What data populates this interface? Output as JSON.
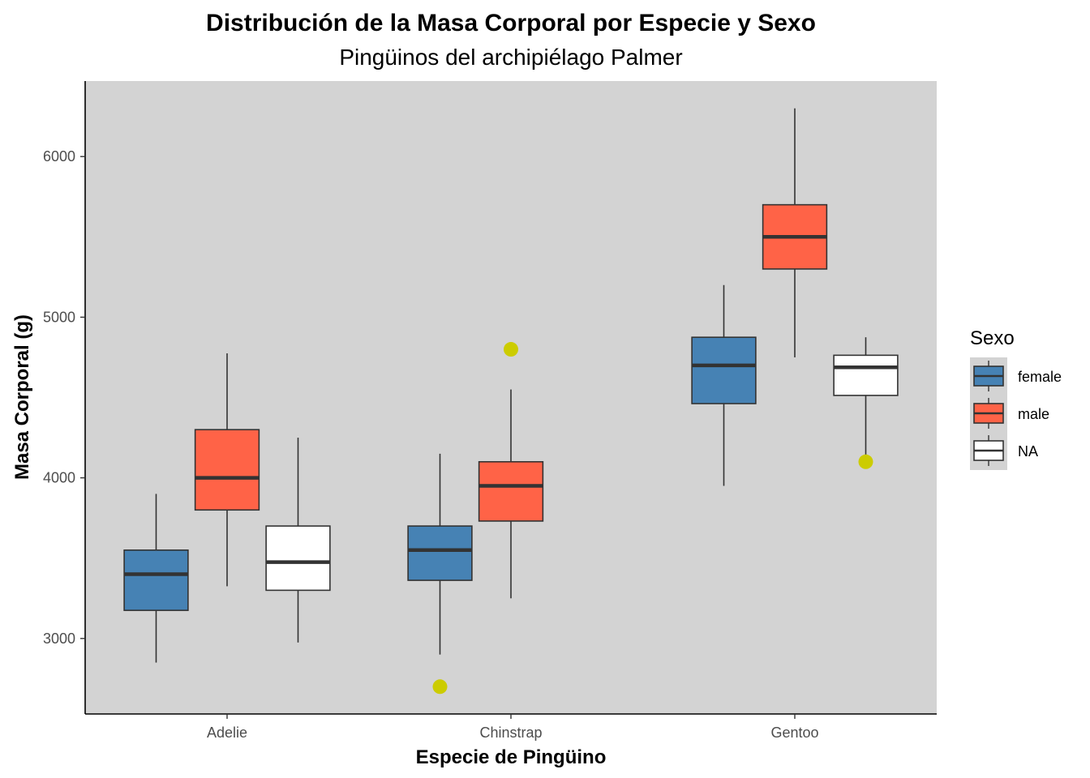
{
  "chart_data": {
    "type": "boxplot",
    "title": "Distribución de la Masa Corporal por Especie y Sexo",
    "subtitle": "Pingüinos del archipiélago Palmer",
    "xlabel": "Especie de Pingüino",
    "ylabel": "Masa Corporal (g)",
    "categories": [
      "Adelie",
      "Chinstrap",
      "Gentoo"
    ],
    "ylim": [
      2530,
      6470
    ],
    "yticks": [
      3000,
      4000,
      5000,
      6000
    ],
    "grid": false,
    "panel_background": "#d3d3d3",
    "outlier_color": "#cccc00",
    "legend": {
      "title": "Sexo",
      "position": "right"
    },
    "series": [
      {
        "name": "female",
        "color": "#4682b4",
        "boxes": [
          {
            "category": "Adelie",
            "whisker_low": 2850,
            "q1": 3175,
            "median": 3400,
            "q3": 3550,
            "whisker_high": 3900,
            "outliers": []
          },
          {
            "category": "Chinstrap",
            "whisker_low": 2900,
            "q1": 3362,
            "median": 3550,
            "q3": 3700,
            "whisker_high": 4150,
            "outliers": [
              2700
            ]
          },
          {
            "category": "Gentoo",
            "whisker_low": 3950,
            "q1": 4462,
            "median": 4700,
            "q3": 4875,
            "whisker_high": 5200,
            "outliers": []
          }
        ]
      },
      {
        "name": "male",
        "color": "#ff6347",
        "boxes": [
          {
            "category": "Adelie",
            "whisker_low": 3325,
            "q1": 3800,
            "median": 4000,
            "q3": 4300,
            "whisker_high": 4775,
            "outliers": []
          },
          {
            "category": "Chinstrap",
            "whisker_low": 3250,
            "q1": 3731,
            "median": 3950,
            "q3": 4100,
            "whisker_high": 4550,
            "outliers": [
              4800
            ]
          },
          {
            "category": "Gentoo",
            "whisker_low": 4750,
            "q1": 5300,
            "median": 5500,
            "q3": 5700,
            "whisker_high": 6300,
            "outliers": []
          }
        ]
      },
      {
        "name": "NA",
        "color": "#ffffff",
        "boxes": [
          {
            "category": "Adelie",
            "whisker_low": 2975,
            "q1": 3300,
            "median": 3475,
            "q3": 3700,
            "whisker_high": 4250,
            "outliers": []
          },
          {
            "category": "Gentoo",
            "whisker_low": 4100,
            "q1": 4513,
            "median": 4688,
            "q3": 4763,
            "whisker_high": 4875,
            "outliers": [
              4100
            ]
          }
        ]
      }
    ]
  }
}
